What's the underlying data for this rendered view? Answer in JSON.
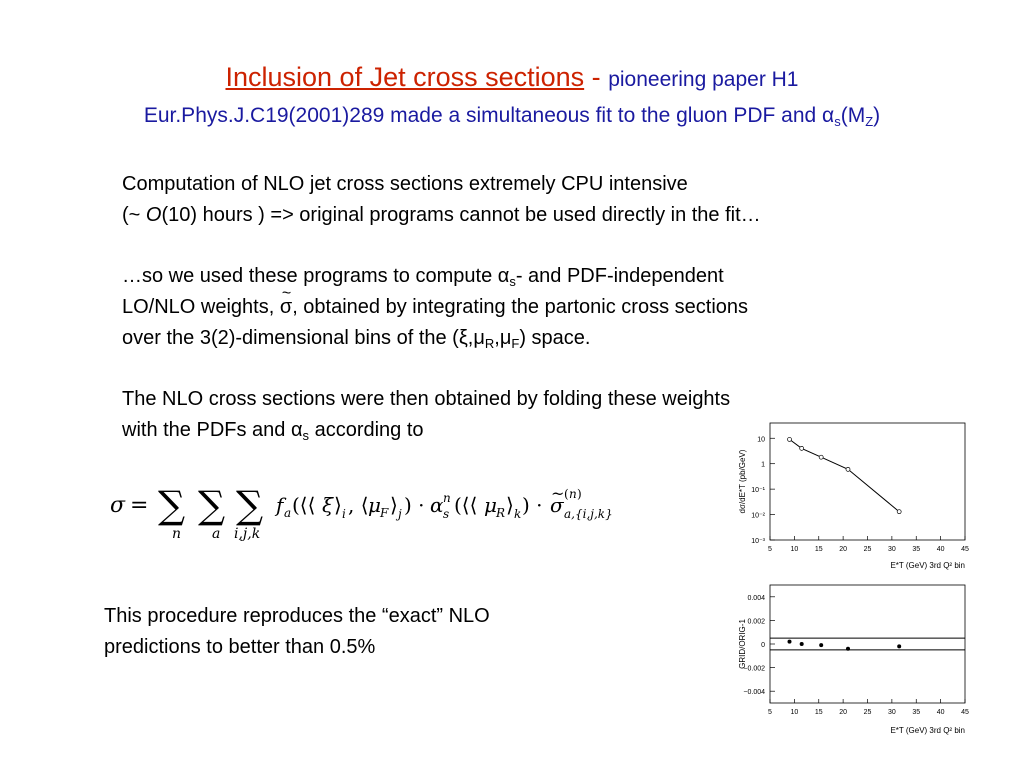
{
  "title": {
    "main": "Inclusion of Jet cross sections",
    "dash": "-",
    "sub": "pioneering paper H1",
    "line2_pre": "Eur.Phys.J.C19(2001)289 made a simultaneous fit to the gluon PDF and α",
    "line2_sub1": "s",
    "line2_mid": "(M",
    "line2_sub2": "Z",
    "line2_end": ")"
  },
  "para1": {
    "line1": "Computation of NLO jet  cross sections extremely CPU intensive",
    "line2_pre": "(~ ",
    "line2_italic": "O",
    "line2_post": "(10) hours ) => original programs cannot be used directly in the fit…"
  },
  "para2": {
    "line1_pre": "…so we used these programs to compute α",
    "line1_sub": "s",
    "line1_post": "- and  PDF-independent",
    "line2_pre": "LO/NLO weights, ",
    "line2_sigma": "σ",
    "line2_post": ", obtained by integrating the partonic cross sections",
    "line3_pre": "over  the 3(2)-dimensional bins of the (ξ,μ",
    "line3_sub1": "R",
    "line3_mid": ",μ",
    "line3_sub2": "F",
    "line3_post": ") space."
  },
  "para3": {
    "line1": "The NLO cross sections were then obtained by folding these weights",
    "line2_pre": "with the PDFs and α",
    "line2_sub": "s",
    "line2_post": " according to"
  },
  "conclusion": {
    "line1": "This procedure reproduces the “exact” NLO",
    "line2": "predictions to better than 0.5%"
  },
  "chart_data": [
    {
      "type": "line",
      "ylabel": "dσ/dE*T (pb/GeV)",
      "xlabel": "E*T (GeV) 3rd Q² bin",
      "xlim": [
        5,
        45
      ],
      "ylim_log10": [
        -3,
        1.6
      ],
      "y_log_scale": true,
      "x_ticks": [
        5,
        10,
        15,
        20,
        25,
        30,
        35,
        40,
        45
      ],
      "y_tick_labels": [
        "10",
        "1",
        "10⁻¹",
        "10⁻²",
        "10⁻³"
      ],
      "x": [
        9,
        11.5,
        15.5,
        21,
        31.5
      ],
      "y": [
        9,
        4,
        1.8,
        0.6,
        0.013
      ]
    },
    {
      "type": "scatter",
      "ylabel": "GRID/ORIG-1",
      "xlabel": "E*T (GeV) 3rd Q² bin",
      "xlim": [
        5,
        45
      ],
      "ylim": [
        -0.005,
        0.005
      ],
      "x_ticks": [
        5,
        10,
        15,
        20,
        25,
        30,
        35,
        40,
        45
      ],
      "y_ticks": [
        0.004,
        0.002,
        0,
        -0.002,
        -0.004
      ],
      "y_tick_labels": [
        "0.004",
        "0.002",
        "0",
        "−0.002",
        "−0.004"
      ],
      "reference_lines": [
        0.0005,
        -0.0005
      ],
      "x": [
        9,
        11.5,
        15.5,
        21,
        31.5
      ],
      "y": [
        0.0002,
        0.0,
        -0.0001,
        -0.0004,
        -0.0002
      ]
    }
  ]
}
